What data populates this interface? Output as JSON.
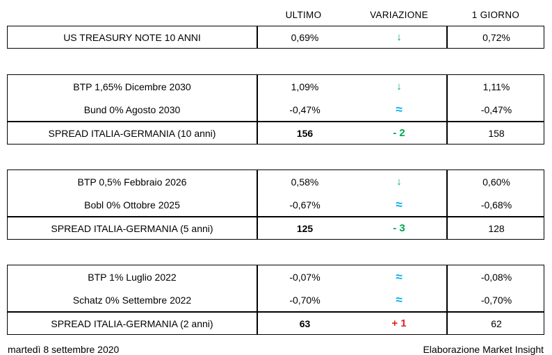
{
  "header": {
    "col_ultimo": "ULTIMO",
    "col_variazione": "VARIAZIONE",
    "col_giorno": "1 GIORNO"
  },
  "colors": {
    "positive_green": "#00A651",
    "neutral_blue": "#00AEEF",
    "negative_red": "#E02020",
    "border": "#000000"
  },
  "blocks": [
    {
      "rows": [
        {
          "label": "US TREASURY NOTE 10 ANNI",
          "ultimo": "0,69%",
          "variazione": "↓",
          "variazione_meaning": "down",
          "giorno": "0,72%"
        }
      ]
    },
    {
      "rows": [
        {
          "label": "BTP 1,65% Dicembre 2030",
          "ultimo": "1,09%",
          "variazione": "↓",
          "variazione_meaning": "down",
          "giorno": "1,11%"
        },
        {
          "label": "Bund 0% Agosto 2030",
          "ultimo": "-0,47%",
          "variazione": "≈",
          "variazione_meaning": "unchanged",
          "giorno": "-0,47%"
        },
        {
          "label": "SPREAD ITALIA-GERMANIA (10 anni)",
          "ultimo": "156",
          "variazione": "- 2",
          "variazione_meaning": "down",
          "giorno": "158"
        }
      ]
    },
    {
      "rows": [
        {
          "label": "BTP 0,5% Febbraio 2026",
          "ultimo": "0,58%",
          "variazione": "↓",
          "variazione_meaning": "down",
          "giorno": "0,60%"
        },
        {
          "label": "Bobl 0% Ottobre 2025",
          "ultimo": "-0,67%",
          "variazione": "≈",
          "variazione_meaning": "unchanged",
          "giorno": "-0,68%"
        },
        {
          "label": "SPREAD ITALIA-GERMANIA (5 anni)",
          "ultimo": "125",
          "variazione": "- 3",
          "variazione_meaning": "down",
          "giorno": "128"
        }
      ]
    },
    {
      "rows": [
        {
          "label": "BTP 1% Luglio 2022",
          "ultimo": "-0,07%",
          "variazione": "≈",
          "variazione_meaning": "unchanged",
          "giorno": "-0,08%"
        },
        {
          "label": "Schatz 0% Settembre 2022",
          "ultimo": "-0,70%",
          "variazione": "≈",
          "variazione_meaning": "unchanged",
          "giorno": "-0,70%"
        },
        {
          "label": "SPREAD ITALIA-GERMANIA (2 anni)",
          "ultimo": "63",
          "variazione": "+ 1",
          "variazione_meaning": "up",
          "giorno": "62"
        }
      ]
    }
  ],
  "footer": {
    "date": "martedì 8 settembre 2020",
    "attribution": "Elaborazione Market Insight"
  }
}
